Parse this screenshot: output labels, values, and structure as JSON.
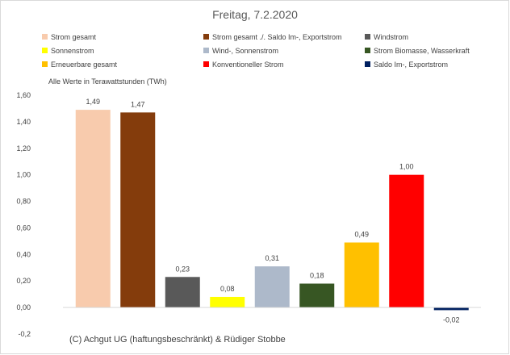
{
  "chart_data": {
    "type": "bar",
    "title": "Freitag, 7.2.2020",
    "note": "Alle Werte in Terawattstunden (TWh)",
    "categories": [
      "Strom gesamt",
      "Strom gesamt ./. Saldo Im-, Exportstrom",
      "Windstrom",
      "Sonnenstrom",
      "Wind-, Sonnenstrom",
      "Strom Biomasse, Wasserkraft",
      "Erneuerbare gesamt",
      "Konventioneller Strom",
      "Saldo Im-, Exportstrom"
    ],
    "values": [
      1.49,
      1.47,
      0.23,
      0.08,
      0.31,
      0.18,
      0.49,
      1.0,
      -0.02
    ],
    "value_labels": [
      "1,49",
      "1,47",
      "0,23",
      "0,08",
      "0,31",
      "0,18",
      "0,49",
      "1,00",
      "-0,02"
    ],
    "colors": [
      "#f8cbad",
      "#843c0c",
      "#595959",
      "#ffff00",
      "#adb9ca",
      "#375623",
      "#ffc000",
      "#ff0000",
      "#002060"
    ],
    "ylim": [
      -0.2,
      1.6
    ],
    "yticks": [
      1.6,
      1.4,
      1.2,
      1.0,
      0.8,
      0.6,
      0.4,
      0.2,
      0.0,
      -0.2
    ],
    "ytick_labels": [
      "1,60",
      "1,40",
      "1,20",
      "1,00",
      "0,80",
      "0,60",
      "0,40",
      "0,20",
      "0,00",
      "-0,2"
    ],
    "grid": false,
    "legend_position": "top",
    "legend": [
      "Strom gesamt",
      "Strom gesamt ./. Saldo Im-, Exportstrom",
      "Windstrom",
      "Sonnenstrom",
      "Wind-, Sonnenstrom",
      "Strom Biomasse, Wasserkraft",
      "Erneuerbare gesamt",
      "Konventioneller Strom",
      "Saldo Im-, Exportstrom"
    ]
  },
  "footer": "(C) Achgut UG (haftungsbeschränkt) & Rüdiger Stobbe"
}
